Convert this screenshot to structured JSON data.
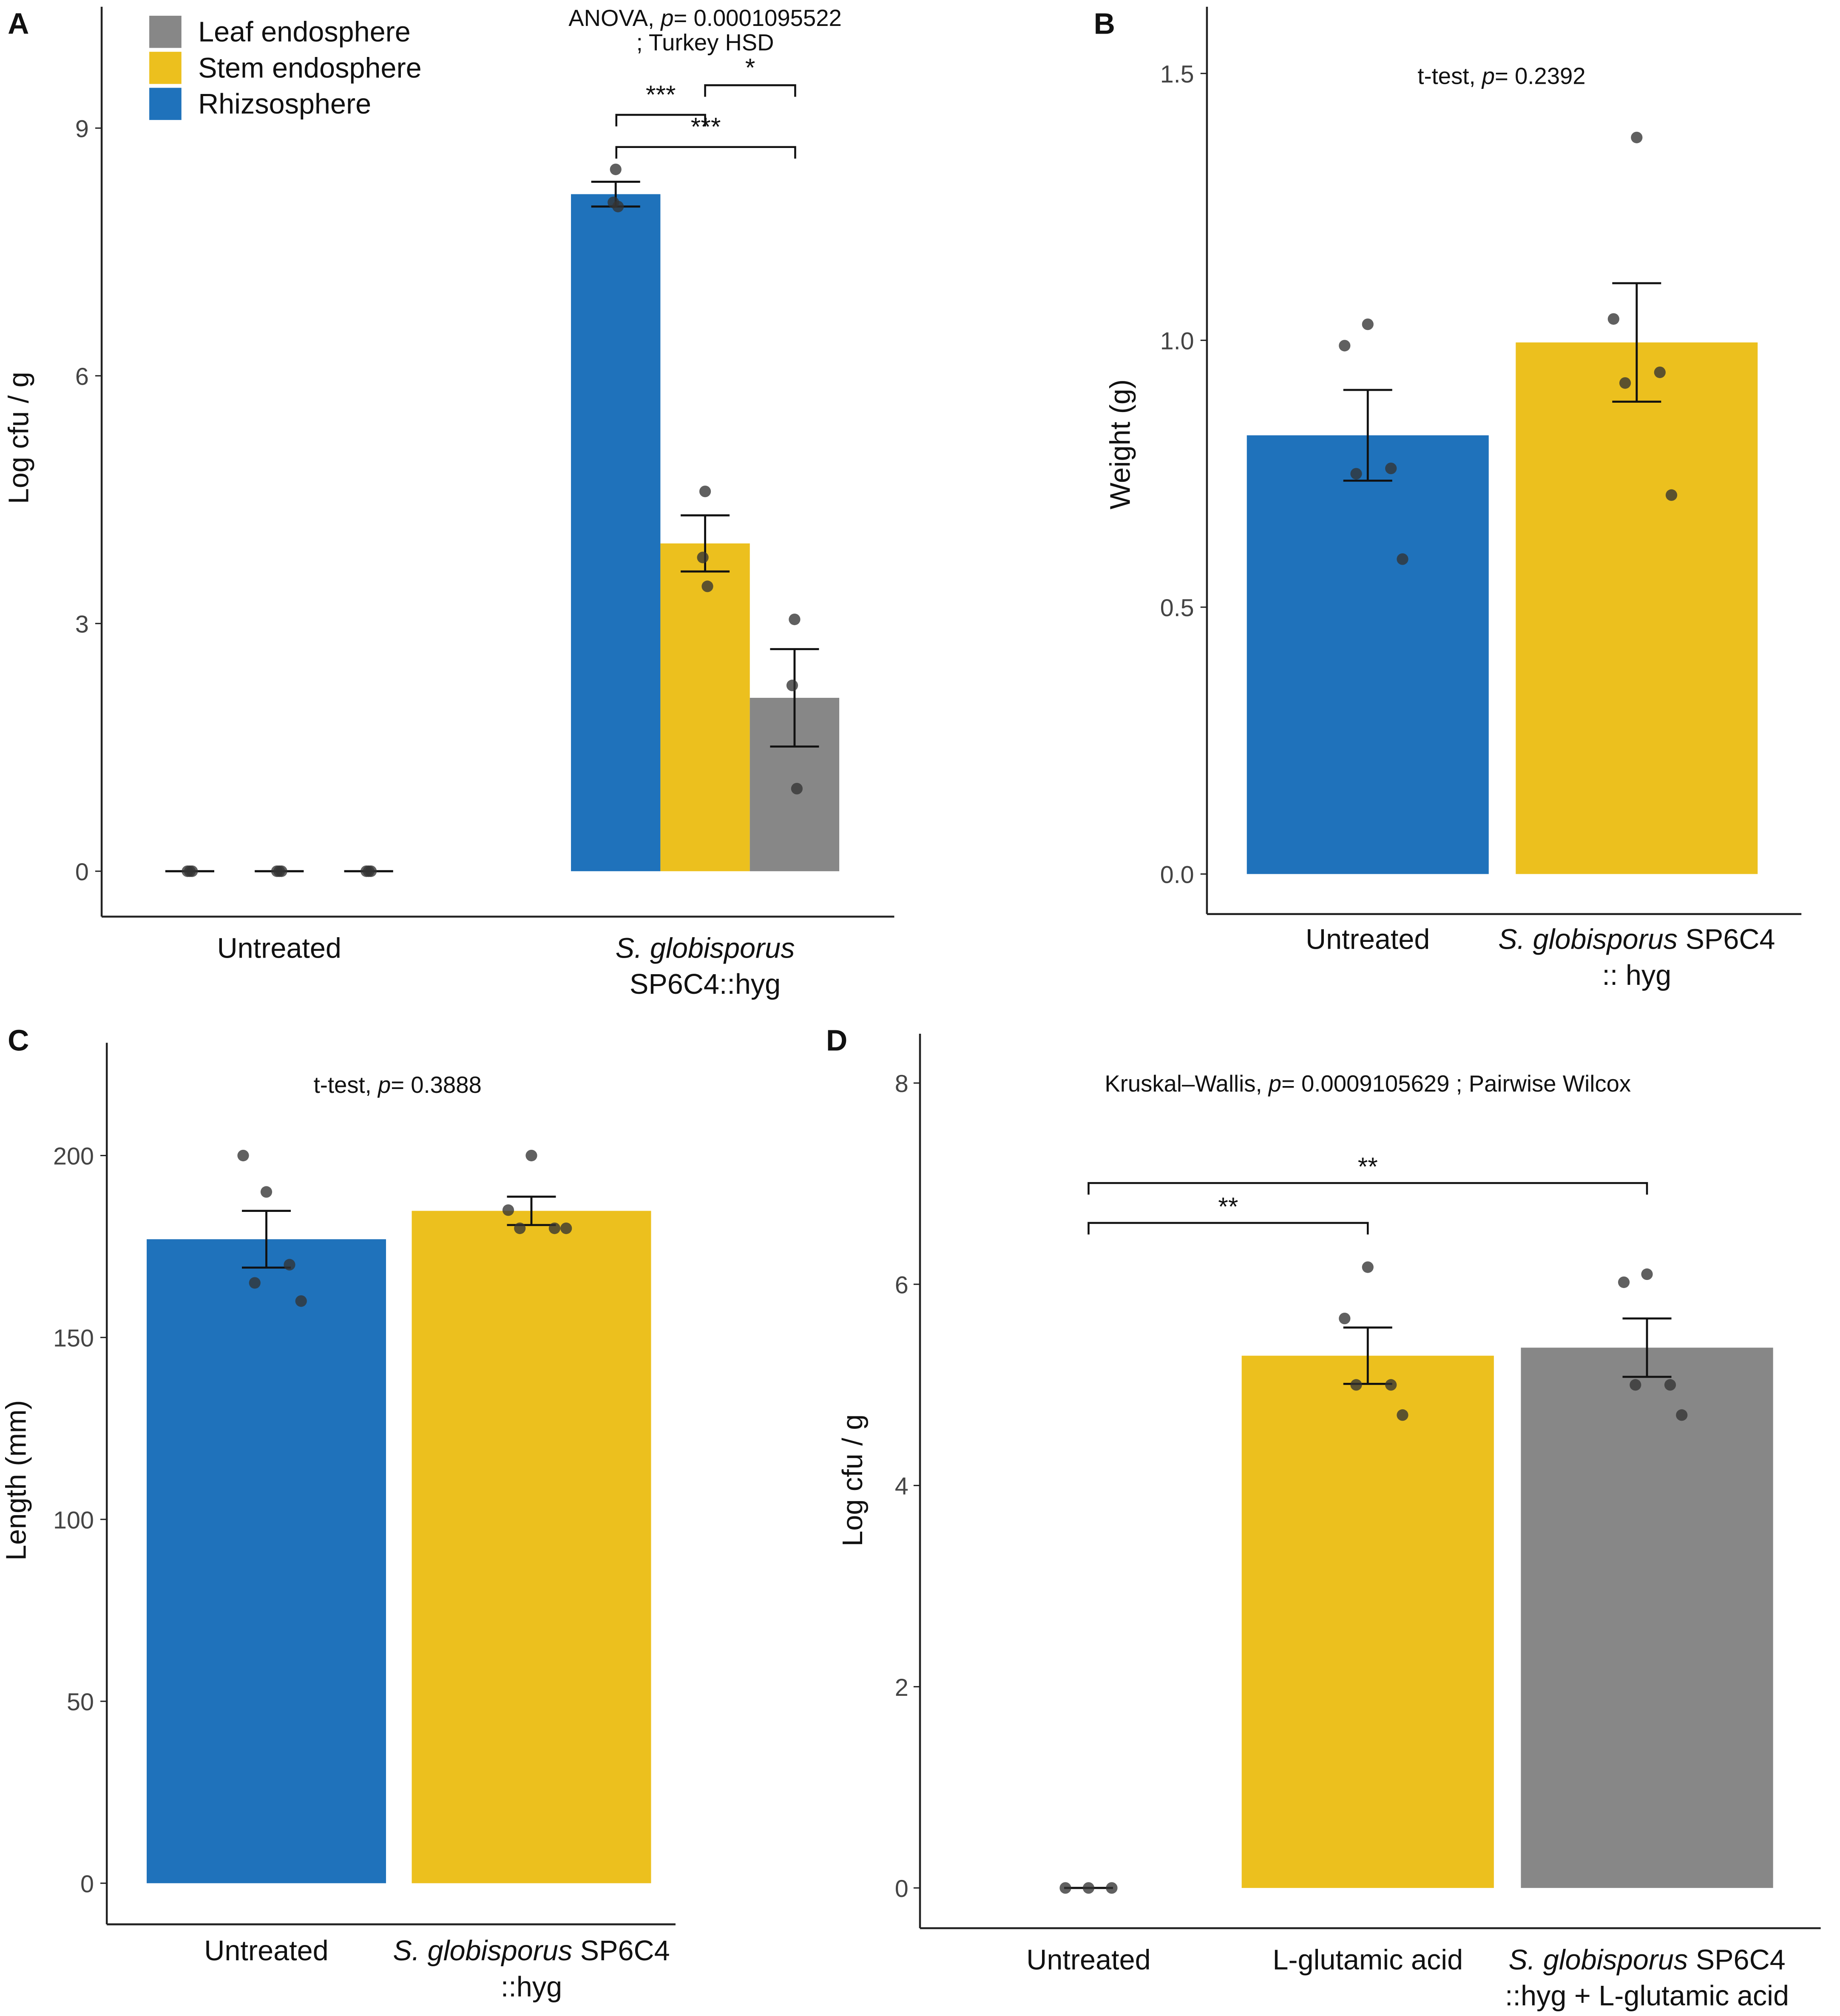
{
  "chart_data": [
    {
      "type": "grouped-bar",
      "letter": "A",
      "ylabel": "Log cfu / g",
      "stats": [
        [
          "ANOVA, ",
          {
            "italic": "p"
          },
          "= 0.0001095522"
        ],
        [
          "; Turkey HSD"
        ]
      ],
      "categories": [
        [
          [
            "Untreated"
          ]
        ],
        [
          [
            {
              "italic": "S. globisporus"
            }
          ],
          [
            "SP6C4::hyg"
          ]
        ]
      ],
      "series": [
        {
          "name": "Leaf endosphere",
          "color": "#878787",
          "values": [
            0,
            2.1
          ],
          "errors": [
            0,
            0.59
          ],
          "points": [
            [
              0,
              0,
              0
            ],
            [
              3.05,
              2.25,
              1.0
            ]
          ]
        },
        {
          "name": "Stem endosphere",
          "color": "#ecc01e",
          "values": [
            0,
            3.97
          ],
          "errors": [
            0,
            0.34
          ],
          "points": [
            [
              0,
              0,
              0
            ],
            [
              4.6,
              3.8,
              3.45
            ]
          ]
        },
        {
          "name": "Rhizsosphere",
          "color": "#1f72bb",
          "values": [
            0,
            8.2
          ],
          "errors": [
            0,
            0.15
          ],
          "points": [
            [
              0,
              0,
              0
            ],
            [
              8.5,
              8.1,
              8.05
            ]
          ]
        }
      ],
      "significance": [
        "***",
        "*",
        "***"
      ],
      "ylim": [
        -0.55,
        10.47
      ],
      "yticks": [
        0,
        3,
        6,
        9
      ]
    },
    {
      "type": "bar",
      "letter": "B",
      "ylabel": "Weight (g)",
      "stats": [
        [
          "t-test,  ",
          {
            "italic": "p"
          },
          "= 0.2392"
        ]
      ],
      "categories": [
        [
          [
            "Untreated"
          ]
        ],
        [
          [
            {
              "italic": "S. globisporus"
            },
            " SP6C4"
          ],
          [
            ":: hyg"
          ]
        ]
      ],
      "colors": [
        "#1f72bb",
        "#ecc01e"
      ],
      "values": [
        0.822,
        0.996
      ],
      "errors": [
        0.085,
        0.111
      ],
      "points": [
        [
          1.03,
          0.99,
          0.76,
          0.75,
          0.59
        ],
        [
          1.38,
          1.04,
          0.94,
          0.92,
          0.71
        ]
      ],
      "ylim": [
        -0.075,
        1.625
      ],
      "yticks": [
        {
          "value": 0,
          "label": "0.0"
        },
        0.5,
        {
          "value": 1,
          "label": "1.0"
        },
        1.5
      ]
    },
    {
      "type": "bar",
      "letter": "C",
      "ylabel": "Length (mm)",
      "stats": [
        [
          "t-test,  ",
          {
            "italic": "p"
          },
          "= 0.3888"
        ]
      ],
      "categories": [
        [
          [
            "Untreated"
          ]
        ],
        [
          [
            {
              "italic": "S. globisporus"
            },
            " SP6C4"
          ],
          [
            "::hyg"
          ]
        ]
      ],
      "colors": [
        "#1f72bb",
        "#ecc01e"
      ],
      "values": [
        177,
        184.8
      ],
      "errors": [
        7.8,
        3.9
      ],
      "points": [
        [
          190,
          200,
          170,
          165,
          160
        ],
        [
          200,
          185,
          180,
          180,
          180
        ]
      ],
      "ylim": [
        -11.3,
        231
      ],
      "yticks": [
        0,
        50,
        100,
        150,
        200
      ]
    },
    {
      "type": "bar",
      "letter": "D",
      "ylabel": "Log cfu / g",
      "stats": [
        [
          "Kruskal–Wallis,  ",
          {
            "italic": "p"
          },
          "= 0.0009105629 ; Pairwise Wilcox"
        ]
      ],
      "categories": [
        [
          [
            "Untreated"
          ]
        ],
        [
          [
            "L-glutamic acid"
          ]
        ],
        [
          [
            {
              "italic": "S. globisporus"
            },
            " SP6C4"
          ],
          [
            "::hyg + L-glutamic acid"
          ]
        ]
      ],
      "colors": [
        "#000000",
        "#ecc01e",
        "#878787"
      ],
      "values": [
        0,
        5.29,
        5.37
      ],
      "errors": [
        0,
        0.28,
        0.29
      ],
      "points": [
        [
          0,
          0,
          0
        ],
        [
          6.17,
          5.66,
          5.0,
          5.0,
          4.7
        ],
        [
          6.1,
          6.02,
          5.0,
          5.0,
          4.7
        ]
      ],
      "significance": [
        "**",
        "**"
      ],
      "ylim": [
        -0.4,
        8.49
      ],
      "yticks": [
        0,
        2,
        4,
        6,
        8
      ]
    }
  ]
}
